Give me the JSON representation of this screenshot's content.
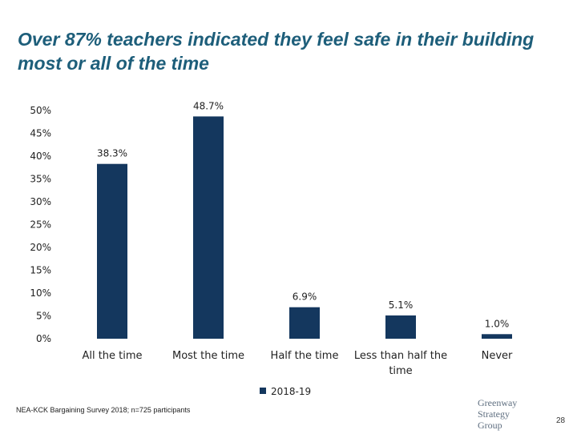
{
  "slide": {
    "title": "Over 87% teachers indicated they feel safe in their building most or all of the time",
    "source_note": "NEA-KCK Bargaining Survey 2018; n=725 participants",
    "logo_lines": [
      "Greenway",
      "Strategy",
      "Group"
    ],
    "page_number": "28"
  },
  "colors": {
    "title": "#1d5e7a",
    "bar": "#14375e",
    "axis_text": "#222222"
  },
  "chart_data": {
    "type": "bar",
    "categories": [
      "All the time",
      "Most the time",
      "Half the time",
      "Less than half the time",
      "Never"
    ],
    "series": [
      {
        "name": "2018-19",
        "values": [
          38.3,
          48.7,
          6.9,
          5.1,
          1.0
        ]
      }
    ],
    "data_labels": [
      "38.3%",
      "48.7%",
      "6.9%",
      "5.1%",
      "1.0%"
    ],
    "y_ticks": [
      "0%",
      "5%",
      "10%",
      "15%",
      "20%",
      "25%",
      "30%",
      "35%",
      "40%",
      "45%",
      "50%"
    ],
    "ylim": [
      0,
      50
    ],
    "grid": false,
    "legend": "bottom",
    "title": "",
    "xlabel": "",
    "ylabel": ""
  }
}
